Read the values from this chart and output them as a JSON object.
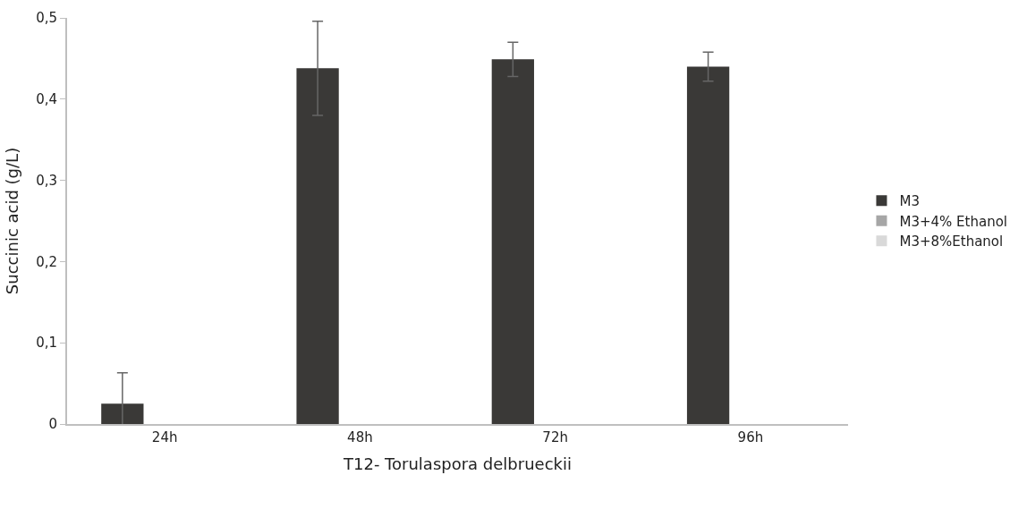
{
  "chart_data": {
    "type": "bar",
    "xlabel": "T12- Torulaspora delbrueckii",
    "ylabel": "Succinic acid (g/L)",
    "categories": [
      "24h",
      "48h",
      "72h",
      "96h"
    ],
    "series": [
      {
        "name": "M3",
        "color": "#3a3937",
        "values": [
          0.025,
          0.438,
          0.449,
          0.44
        ],
        "errors": [
          0.038,
          0.058,
          0.021,
          0.018
        ]
      },
      {
        "name": "M3+4% Ethanol",
        "color": "#a6a6a6",
        "values": [
          0,
          0,
          0,
          0
        ]
      },
      {
        "name": "M3+8%Ethanol",
        "color": "#d9d9d9",
        "values": [
          0,
          0,
          0,
          0
        ]
      }
    ],
    "ylim": [
      0,
      0.5
    ],
    "yticks": [
      0,
      {
        "value": 0.1,
        "label": "0,1"
      },
      {
        "value": 0.2,
        "label": "0,2"
      },
      {
        "value": 0.3,
        "label": "0,3"
      },
      {
        "value": 0.4,
        "label": "0,4"
      },
      {
        "value": 0.5,
        "label": "0,5"
      }
    ],
    "legend": "right"
  }
}
